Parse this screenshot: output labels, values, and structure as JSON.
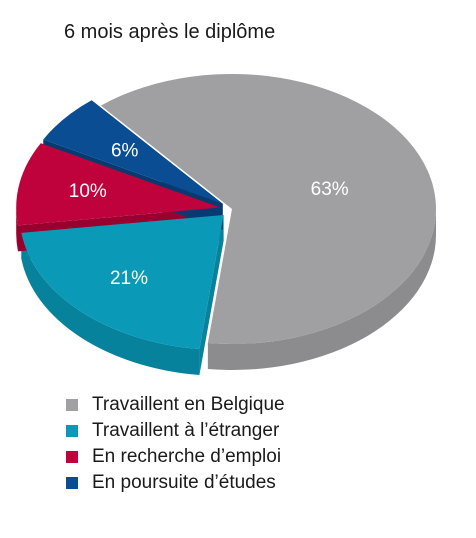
{
  "chart_data": {
    "type": "pie",
    "style": "3d-exploded",
    "title": "6 mois après le diplôme",
    "start_angle_deg": -130,
    "slices": [
      {
        "label": "Travaillent en Belgique",
        "value": 63,
        "display": "63%",
        "color": "#a0a0a2",
        "side_color": "#8c8c8e"
      },
      {
        "label": "Travaillent à l’étranger",
        "value": 21,
        "display": "21%",
        "color": "#0a9ab8",
        "side_color": "#07829c"
      },
      {
        "label": "En recherche d’emploi",
        "value": 10,
        "display": "10%",
        "color": "#c0023c",
        "side_color": "#98002f"
      },
      {
        "label": "En poursuite d’études",
        "value": 6,
        "display": "6%",
        "color": "#0a4d93",
        "side_color": "#073a70"
      }
    ],
    "legend_position": "bottom-left"
  }
}
